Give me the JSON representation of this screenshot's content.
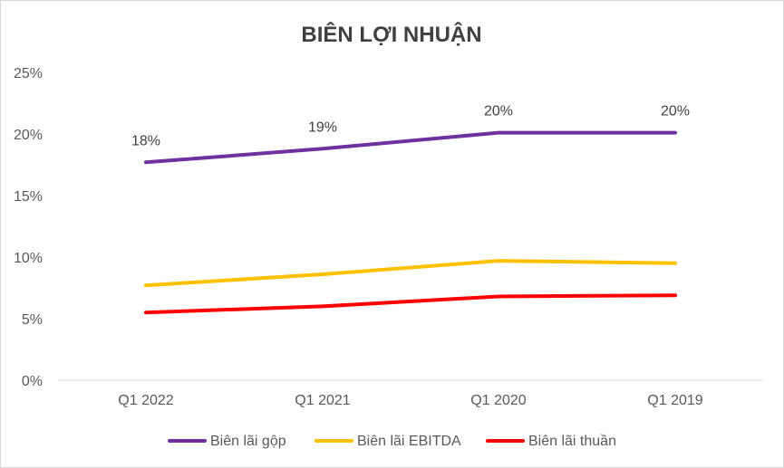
{
  "chart_data": {
    "type": "line",
    "title": "BIÊN LỢI NHUẬN",
    "categories": [
      "Q1 2022",
      "Q1 2021",
      "Q1 2020",
      "Q1 2019"
    ],
    "ylim": [
      0,
      25
    ],
    "yticks": [
      0,
      5,
      10,
      15,
      20,
      25
    ],
    "ytick_labels": [
      "0%",
      "5%",
      "10%",
      "15%",
      "20%",
      "25%"
    ],
    "grid": false,
    "legend_position": "bottom",
    "series": [
      {
        "name": "Biên lãi gộp",
        "color": "#7030A0",
        "values": [
          17.7,
          18.8,
          20.1,
          20.1
        ],
        "data_labels": [
          "18%",
          "19%",
          "20%",
          "20%"
        ]
      },
      {
        "name": "Biên lãi EBITDA",
        "color": "#FFC000",
        "values": [
          7.7,
          8.6,
          9.7,
          9.5
        ]
      },
      {
        "name": "Biên lãi thuần",
        "color": "#FF0000",
        "values": [
          5.5,
          6.0,
          6.8,
          6.9
        ]
      }
    ]
  }
}
